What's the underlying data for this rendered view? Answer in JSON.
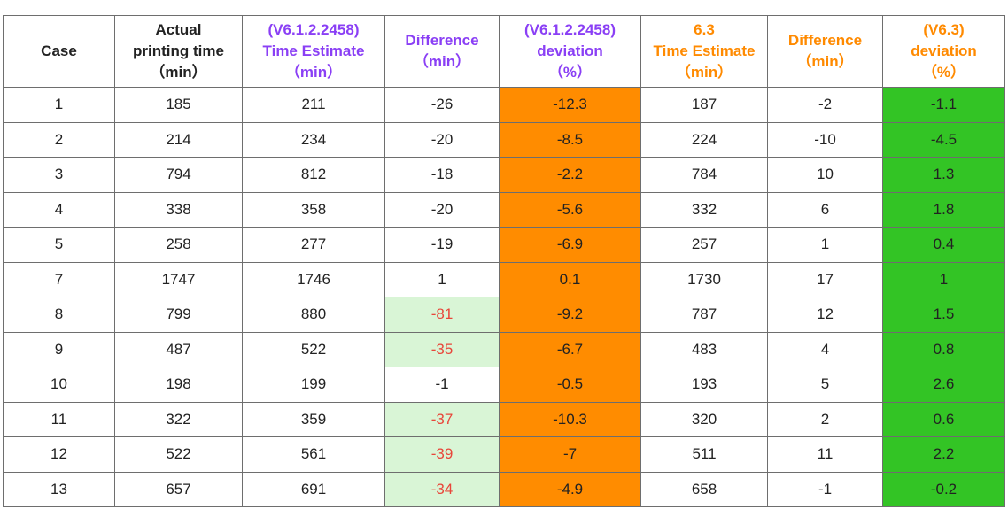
{
  "headers": [
    {
      "lines": [
        "Case"
      ]
    },
    {
      "lines": [
        "Actual",
        "printing time",
        "（min）"
      ]
    },
    {
      "lines": [
        "(V6.1.2.2458)",
        "Time Estimate",
        "（min）"
      ]
    },
    {
      "lines": [
        "Difference",
        "（min）"
      ]
    },
    {
      "lines": [
        "(V6.1.2.2458)",
        "deviation",
        "（%）"
      ]
    },
    {
      "lines": [
        "6.3",
        "Time Estimate",
        "（min）"
      ]
    },
    {
      "lines": [
        "Difference",
        "（min）"
      ]
    },
    {
      "lines": [
        "(V6.3)",
        "deviation",
        "（%）"
      ]
    }
  ],
  "rows": [
    [
      "1",
      "185",
      "211",
      "-26",
      "-12.3",
      "187",
      "-2",
      "-1.1"
    ],
    [
      "2",
      "214",
      "234",
      "-20",
      "-8.5",
      "224",
      "-10",
      "-4.5"
    ],
    [
      "3",
      "794",
      "812",
      "-18",
      "-2.2",
      "784",
      "10",
      "1.3"
    ],
    [
      "4",
      "338",
      "358",
      "-20",
      "-5.6",
      "332",
      "6",
      "1.8"
    ],
    [
      "5",
      "258",
      "277",
      "-19",
      "-6.9",
      "257",
      "1",
      "0.4"
    ],
    [
      "7",
      "1747",
      "1746",
      "1",
      "0.1",
      "1730",
      "17",
      "1"
    ],
    [
      "8",
      "799",
      "880",
      "-81",
      "-9.2",
      "787",
      "12",
      "1.5"
    ],
    [
      "9",
      "487",
      "522",
      "-35",
      "-6.7",
      "483",
      "4",
      "0.8"
    ],
    [
      "10",
      "198",
      "199",
      "-1",
      "-0.5",
      "193",
      "5",
      "2.6"
    ],
    [
      "11",
      "322",
      "359",
      "-37",
      "-10.3",
      "320",
      "2",
      "0.6"
    ],
    [
      "12",
      "522",
      "561",
      "-39",
      "-7",
      "511",
      "11",
      "2.2"
    ],
    [
      "13",
      "657",
      "691",
      "-34",
      "-4.9",
      "658",
      "-1",
      "-0.2"
    ]
  ],
  "highlighted_difference_rows": [
    6,
    7,
    9,
    10,
    11
  ],
  "colors": {
    "purple": "#8a3ff5",
    "orange": "#ff8a00",
    "orange_fill": "#ff8c00",
    "green_fill": "#33c425",
    "light_green": "#d9f5d6",
    "red_text": "#e8463a"
  }
}
